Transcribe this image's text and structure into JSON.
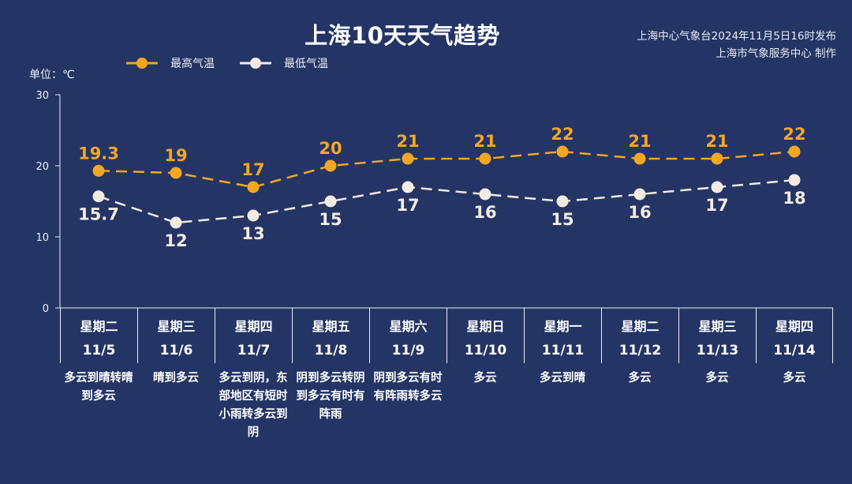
{
  "header": {
    "title": "上海10天天气趋势",
    "issuer_line1": "上海中心气象台2024年11月5日16时发布",
    "issuer_line2": "上海市气象服务中心 制作"
  },
  "legend": {
    "high_label": "最高气温",
    "low_label": "最低气温"
  },
  "unit_label": "单位：℃",
  "colors": {
    "background": "#243565",
    "high": "#f5a623",
    "low": "#f3ebe3",
    "axis": "#e9ebf2"
  },
  "chart_data": {
    "type": "line",
    "title": "上海10天天气趋势",
    "xlabel": "",
    "ylabel": "单位：℃",
    "ylim": [
      0,
      30
    ],
    "yticks": [
      0,
      10,
      20,
      30
    ],
    "grid": false,
    "legend_position": "top-left",
    "categories": [
      "星期二 11/5",
      "星期三 11/6",
      "星期四 11/7",
      "星期五 11/8",
      "星期六 11/9",
      "星期日 11/10",
      "星期一 11/11",
      "星期二 11/12",
      "星期三 11/13",
      "星期四 11/14"
    ],
    "series": [
      {
        "name": "最高气温",
        "values": [
          19.3,
          19,
          17,
          20,
          21,
          21,
          22,
          21,
          21,
          22
        ]
      },
      {
        "name": "最低气温",
        "values": [
          15.7,
          12,
          13,
          15,
          17,
          16,
          15,
          16,
          17,
          18
        ]
      }
    ]
  },
  "days": [
    {
      "dow": "星期二",
      "date": "11/5",
      "desc": "多云到晴转晴到多云"
    },
    {
      "dow": "星期三",
      "date": "11/6",
      "desc": "晴到多云"
    },
    {
      "dow": "星期四",
      "date": "11/7",
      "desc": "多云到阴，东部地区有短时小雨转多云到阴"
    },
    {
      "dow": "星期五",
      "date": "11/8",
      "desc": "阴到多云转阴到多云有时有阵雨"
    },
    {
      "dow": "星期六",
      "date": "11/9",
      "desc": "阴到多云有时有阵雨转多云"
    },
    {
      "dow": "星期日",
      "date": "11/10",
      "desc": "多云"
    },
    {
      "dow": "星期一",
      "date": "11/11",
      "desc": "多云到晴"
    },
    {
      "dow": "星期二",
      "date": "11/12",
      "desc": "多云"
    },
    {
      "dow": "星期三",
      "date": "11/13",
      "desc": "多云"
    },
    {
      "dow": "星期四",
      "date": "11/14",
      "desc": "多云"
    }
  ]
}
